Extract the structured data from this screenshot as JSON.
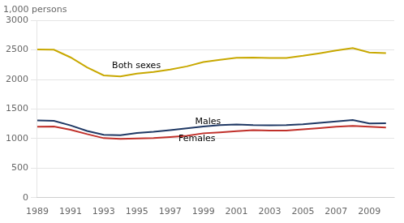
{
  "chart_data": {
    "type": "line",
    "ylabel": "1,000 persons",
    "x": [
      1989,
      1990,
      1991,
      1992,
      1993,
      1994,
      1995,
      1996,
      1997,
      1998,
      1999,
      2000,
      2001,
      2002,
      2003,
      2004,
      2005,
      2006,
      2007,
      2008,
      2009,
      2010
    ],
    "series": [
      {
        "name": "Both sexes",
        "color": "#c8a800",
        "values": [
          2507,
          2504,
          2375,
          2206,
          2071,
          2054,
          2099,
          2127,
          2170,
          2222,
          2296,
          2335,
          2367,
          2372,
          2365,
          2365,
          2401,
          2444,
          2492,
          2531,
          2457,
          2447
        ]
      },
      {
        "name": "Males",
        "color": "#1f3864",
        "values": [
          1307,
          1300,
          1224,
          1130,
          1063,
          1059,
          1096,
          1116,
          1143,
          1174,
          1206,
          1228,
          1240,
          1229,
          1227,
          1229,
          1243,
          1266,
          1290,
          1315,
          1255,
          1259
        ]
      },
      {
        "name": "Females",
        "color": "#c0302a",
        "values": [
          1200,
          1204,
          1151,
          1076,
          1008,
          995,
          1003,
          1011,
          1027,
          1048,
          1090,
          1107,
          1127,
          1143,
          1138,
          1136,
          1158,
          1178,
          1202,
          1216,
          1202,
          1188
        ]
      }
    ],
    "annotations": [
      {
        "text": "Both sexes",
        "x": 1993.5,
        "y": 2190
      },
      {
        "text": "Males",
        "x": 1998.5,
        "y": 1240
      },
      {
        "text": "Females",
        "x": 1997.5,
        "y": 960
      }
    ],
    "xlim": [
      1989,
      2010.5
    ],
    "xticks": [
      1989,
      1991,
      1993,
      1995,
      1997,
      1999,
      2001,
      2003,
      2005,
      2007,
      2009
    ],
    "ylim": [
      0,
      3000
    ],
    "yticks": [
      0,
      500,
      1000,
      1500,
      2000,
      2500,
      3000
    ],
    "grid": "y"
  }
}
